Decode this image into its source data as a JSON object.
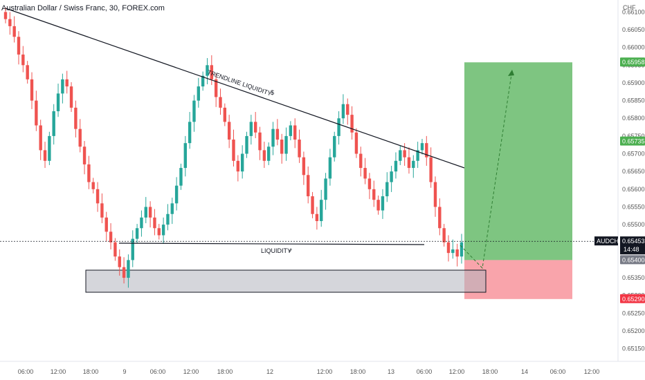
{
  "header": {
    "title": "Australian Dollar / Swiss Franc, 30, FOREX.com"
  },
  "currency": "CHF",
  "price_axis": {
    "ticks": [
      "0.66100",
      "0.66050",
      "0.66000",
      "0.65950",
      "0.65900",
      "0.65850",
      "0.65800",
      "0.65750",
      "0.65700",
      "0.65650",
      "0.65600",
      "0.65550",
      "0.65500",
      "0.65450",
      "0.65400",
      "0.65350",
      "0.65300",
      "0.65250",
      "0.65200",
      "0.65150"
    ]
  },
  "time_axis": {
    "ticks": [
      "06:00",
      "12:00",
      "18:00",
      "9",
      "06:00",
      "12:00",
      "18:00",
      "12",
      "12:00",
      "18:00",
      "13",
      "06:00",
      "12:00",
      "18:00",
      "14",
      "06:00",
      "12:00"
    ]
  },
  "tags": {
    "target": {
      "text": "0.65958",
      "color": "#4caf50"
    },
    "tp2": {
      "text": "0.65735",
      "color": "#4caf50"
    },
    "symbol": {
      "text": "AUDCHF",
      "color": "#131722"
    },
    "last": {
      "text": "0.65453",
      "color": "#131722"
    },
    "countdown": {
      "text": "14:48",
      "color": "#131722"
    },
    "entry": {
      "text": "0.65400",
      "color": "#787b86"
    },
    "stop": {
      "text": "0.65290",
      "color": "#f23645"
    }
  },
  "annotations": {
    "trendline": "TRENDLINE LIQUIDITY",
    "dollar": "$",
    "liquidity": "LIQUIDITY",
    "check": "✓"
  },
  "colors": {
    "up": "#26a69a",
    "down": "#ef5350",
    "profit": "#4caf50",
    "loss": "#f23645"
  },
  "chart_data": {
    "type": "candlestick",
    "title": "Australian Dollar / Swiss Franc, 30, FOREX.com",
    "ylabel": "CHF",
    "ylim": [
      0.6512,
      0.6613
    ],
    "series": [
      {
        "name": "close",
        "values": [
          0.6608,
          0.6606,
          0.6603,
          0.6598,
          0.6595,
          0.6591,
          0.6585,
          0.6578,
          0.6571,
          0.6568,
          0.6575,
          0.6582,
          0.6587,
          0.6591,
          0.6589,
          0.6583,
          0.6577,
          0.6572,
          0.6567,
          0.6562,
          0.656,
          0.6556,
          0.6552,
          0.6548,
          0.6545,
          0.6541,
          0.6538,
          0.6535,
          0.654,
          0.6546,
          0.6549,
          0.6552,
          0.6555,
          0.6552,
          0.6549,
          0.6547,
          0.655,
          0.6553,
          0.6556,
          0.6561,
          0.6566,
          0.6573,
          0.6579,
          0.6585,
          0.6589,
          0.6592,
          0.6595,
          0.6591,
          0.6586,
          0.6583,
          0.6579,
          0.6574,
          0.6568,
          0.6565,
          0.657,
          0.6575,
          0.6579,
          0.6576,
          0.6571,
          0.6568,
          0.6572,
          0.6577,
          0.6574,
          0.657,
          0.6575,
          0.6578,
          0.6574,
          0.6569,
          0.6564,
          0.6558,
          0.6553,
          0.6551,
          0.6557,
          0.6563,
          0.6569,
          0.6575,
          0.658,
          0.6584,
          0.6581,
          0.6576,
          0.657,
          0.6566,
          0.6563,
          0.656,
          0.6557,
          0.6554,
          0.6558,
          0.6562,
          0.6565,
          0.6568,
          0.6571,
          0.6569,
          0.6566,
          0.6568,
          0.6571,
          0.6573,
          0.6569,
          0.6562,
          0.6555,
          0.6549,
          0.6545,
          0.6542,
          0.6543,
          0.6541,
          0.6545
        ]
      }
    ],
    "levels": {
      "target": 0.65958,
      "entry": 0.654,
      "stop": 0.6529,
      "last": 0.65453,
      "secondary": 0.65735
    }
  }
}
